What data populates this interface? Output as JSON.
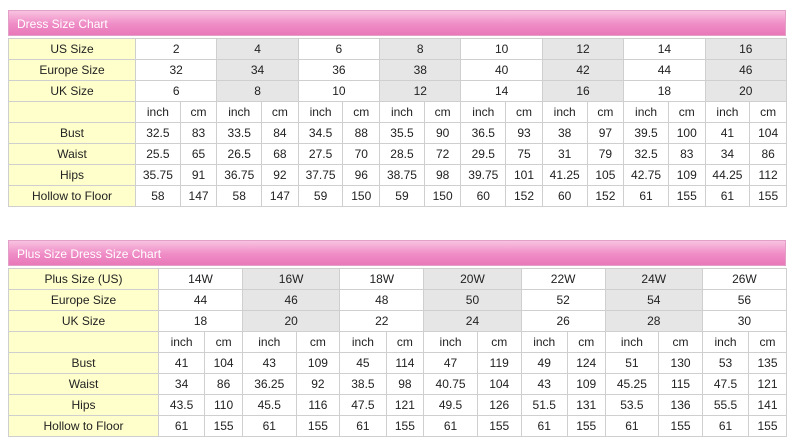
{
  "size_chart": {
    "title": "Dress Size Chart",
    "size_rows": [
      {
        "label": "US Size",
        "values": [
          2,
          4,
          6,
          8,
          10,
          12,
          14,
          16
        ]
      },
      {
        "label": "Europe Size",
        "values": [
          32,
          34,
          36,
          38,
          40,
          42,
          44,
          46
        ]
      },
      {
        "label": "UK Size",
        "values": [
          6,
          8,
          10,
          12,
          14,
          16,
          18,
          20
        ]
      }
    ],
    "units": [
      "inch",
      "cm"
    ],
    "measure_rows": [
      {
        "label": "Bust",
        "values": [
          [
            32.5,
            83
          ],
          [
            33.5,
            84
          ],
          [
            34.5,
            88
          ],
          [
            35.5,
            90
          ],
          [
            36.5,
            93
          ],
          [
            38,
            97
          ],
          [
            39.5,
            100
          ],
          [
            41,
            104
          ]
        ]
      },
      {
        "label": "Waist",
        "values": [
          [
            25.5,
            65
          ],
          [
            26.5,
            68
          ],
          [
            27.5,
            70
          ],
          [
            28.5,
            72
          ],
          [
            29.5,
            75
          ],
          [
            31,
            79
          ],
          [
            32.5,
            83
          ],
          [
            34,
            86
          ]
        ]
      },
      {
        "label": "Hips",
        "values": [
          [
            35.75,
            91
          ],
          [
            36.75,
            92
          ],
          [
            37.75,
            96
          ],
          [
            38.75,
            98
          ],
          [
            39.75,
            101
          ],
          [
            41.25,
            105
          ],
          [
            42.75,
            109
          ],
          [
            44.25,
            112
          ]
        ]
      },
      {
        "label": "Hollow to Floor",
        "values": [
          [
            58,
            147
          ],
          [
            58,
            147
          ],
          [
            59,
            150
          ],
          [
            59,
            150
          ],
          [
            60,
            152
          ],
          [
            60,
            152
          ],
          [
            61,
            155
          ],
          [
            61,
            155
          ]
        ]
      }
    ]
  },
  "plus_size_chart": {
    "title": "Plus Size Dress Size Chart",
    "size_rows": [
      {
        "label": "Plus Size (US)",
        "values": [
          "14W",
          "16W",
          "18W",
          "20W",
          "22W",
          "24W",
          "26W"
        ]
      },
      {
        "label": "Europe Size",
        "values": [
          44,
          46,
          48,
          50,
          52,
          54,
          56
        ]
      },
      {
        "label": "UK Size",
        "values": [
          18,
          20,
          22,
          24,
          26,
          28,
          30
        ]
      }
    ],
    "units": [
      "inch",
      "cm"
    ],
    "measure_rows": [
      {
        "label": "Bust",
        "values": [
          [
            41,
            104
          ],
          [
            43,
            109
          ],
          [
            45,
            114
          ],
          [
            47,
            119
          ],
          [
            49,
            124
          ],
          [
            51,
            130
          ],
          [
            53,
            135
          ]
        ]
      },
      {
        "label": "Waist",
        "values": [
          [
            34,
            86
          ],
          [
            36.25,
            92
          ],
          [
            38.5,
            98
          ],
          [
            40.75,
            104
          ],
          [
            43,
            109
          ],
          [
            45.25,
            115
          ],
          [
            47.5,
            121
          ]
        ]
      },
      {
        "label": "Hips",
        "values": [
          [
            43.5,
            110
          ],
          [
            45.5,
            116
          ],
          [
            47.5,
            121
          ],
          [
            49.5,
            126
          ],
          [
            51.5,
            131
          ],
          [
            53.5,
            136
          ],
          [
            55.5,
            141
          ]
        ]
      },
      {
        "label": "Hollow to Floor",
        "values": [
          [
            61,
            155
          ],
          [
            61,
            155
          ],
          [
            61,
            155
          ],
          [
            61,
            155
          ],
          [
            61,
            155
          ],
          [
            61,
            155
          ],
          [
            61,
            155
          ]
        ]
      }
    ]
  }
}
